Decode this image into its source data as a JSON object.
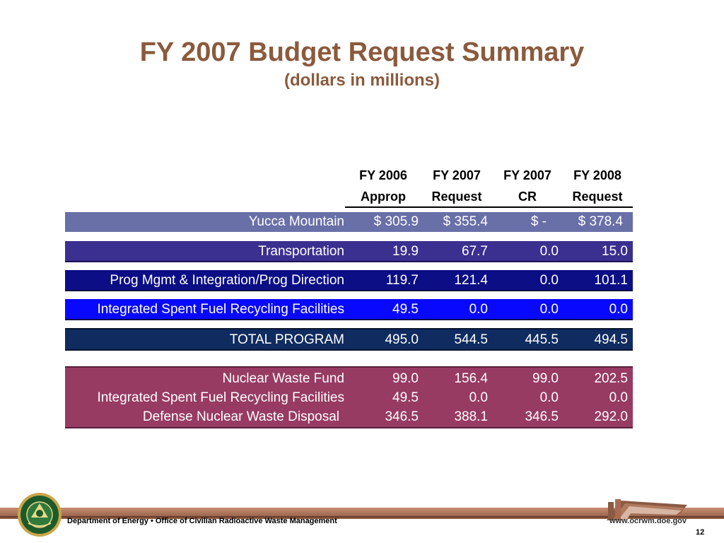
{
  "title": "FY 2007 Budget Request Summary",
  "subtitle": "(dollars in millions)",
  "columns": [
    {
      "line1": "FY 2006",
      "line2": "Approp"
    },
    {
      "line1": "FY 2007",
      "line2": "Request"
    },
    {
      "line1": "FY 2007",
      "line2": "CR"
    },
    {
      "line1": "FY 2008",
      "line2": "Request"
    }
  ],
  "rows": [
    {
      "label": "Yucca Mountain",
      "v1": "$   305.9",
      "v2": "$ 355.4",
      "v3": "$      -",
      "v4": "$ 378.4"
    },
    {
      "label": "Transportation",
      "v1": "19.9",
      "v2": "67.7",
      "v3": "0.0",
      "v4": "15.0"
    },
    {
      "label": "Prog Mgmt & Integration/Prog Direction",
      "v1": "119.7",
      "v2": "121.4",
      "v3": "0.0",
      "v4": "101.1"
    },
    {
      "label": "Integrated Spent Fuel Recycling Facilities",
      "v1": "49.5",
      "v2": "0.0",
      "v3": "0.0",
      "v4": "0.0"
    },
    {
      "label": "TOTAL PROGRAM",
      "v1": "495.0",
      "v2": "544.5",
      "v3": "445.5",
      "v4": "494.5"
    }
  ],
  "funding_rows": [
    {
      "label": "Nuclear Waste Fund",
      "v1": "99.0",
      "v2": "156.4",
      "v3": "99.0",
      "v4": "202.5"
    },
    {
      "label": "Integrated Spent Fuel Recycling Facilities",
      "v1": "49.5",
      "v2": "0.0",
      "v3": "0.0",
      "v4": "0.0"
    },
    {
      "label": "Defense Nuclear Waste Disposal",
      "v1": "346.5",
      "v2": "388.1",
      "v3": "346.5",
      "v4": "292.0"
    }
  ],
  "colors": {
    "title": "#8b5a3c",
    "yucca_row": "#696fa7",
    "transportation_row": "#3b2f90",
    "pmi_row": "#0b0e85",
    "isfrf_row": "#0808ff",
    "total_row": "#0f2b60",
    "funding_block": "#973b63"
  },
  "footer": {
    "org_text": "Department of Energy • Office of Civilian Radioactive Waste Management",
    "url": "www.ocrwm.doe.gov",
    "page_number": "12"
  },
  "icons": {
    "seal": "doe-seal-icon",
    "logo": "ocrwm-logo-icon"
  }
}
